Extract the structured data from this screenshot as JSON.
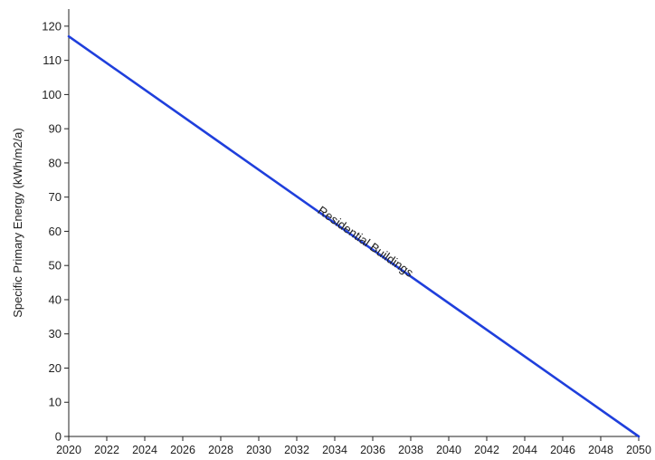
{
  "chart_data": {
    "type": "line",
    "title": "",
    "xlabel": "",
    "ylabel": "Specific Primary Energy (kWh/m2/a)",
    "xlim": [
      2020,
      2050
    ],
    "ylim": [
      0,
      125
    ],
    "x_ticks": [
      "2020",
      "2022",
      "2024",
      "2026",
      "2028",
      "2030",
      "2032",
      "2034",
      "2036",
      "2038",
      "2040",
      "2042",
      "2044",
      "2046",
      "2048",
      "2050"
    ],
    "y_ticks": [
      "0",
      "10",
      "20",
      "30",
      "40",
      "50",
      "60",
      "70",
      "80",
      "90",
      "100",
      "110",
      "120"
    ],
    "grid": false,
    "series": [
      {
        "name": "Residential Buildings",
        "color": "#1f3fdc",
        "x": [
          2020,
          2050
        ],
        "values": [
          117,
          0
        ]
      }
    ],
    "annotations": [
      {
        "text": "Residential Buildings",
        "x": 2035.5,
        "y": 56
      }
    ]
  }
}
